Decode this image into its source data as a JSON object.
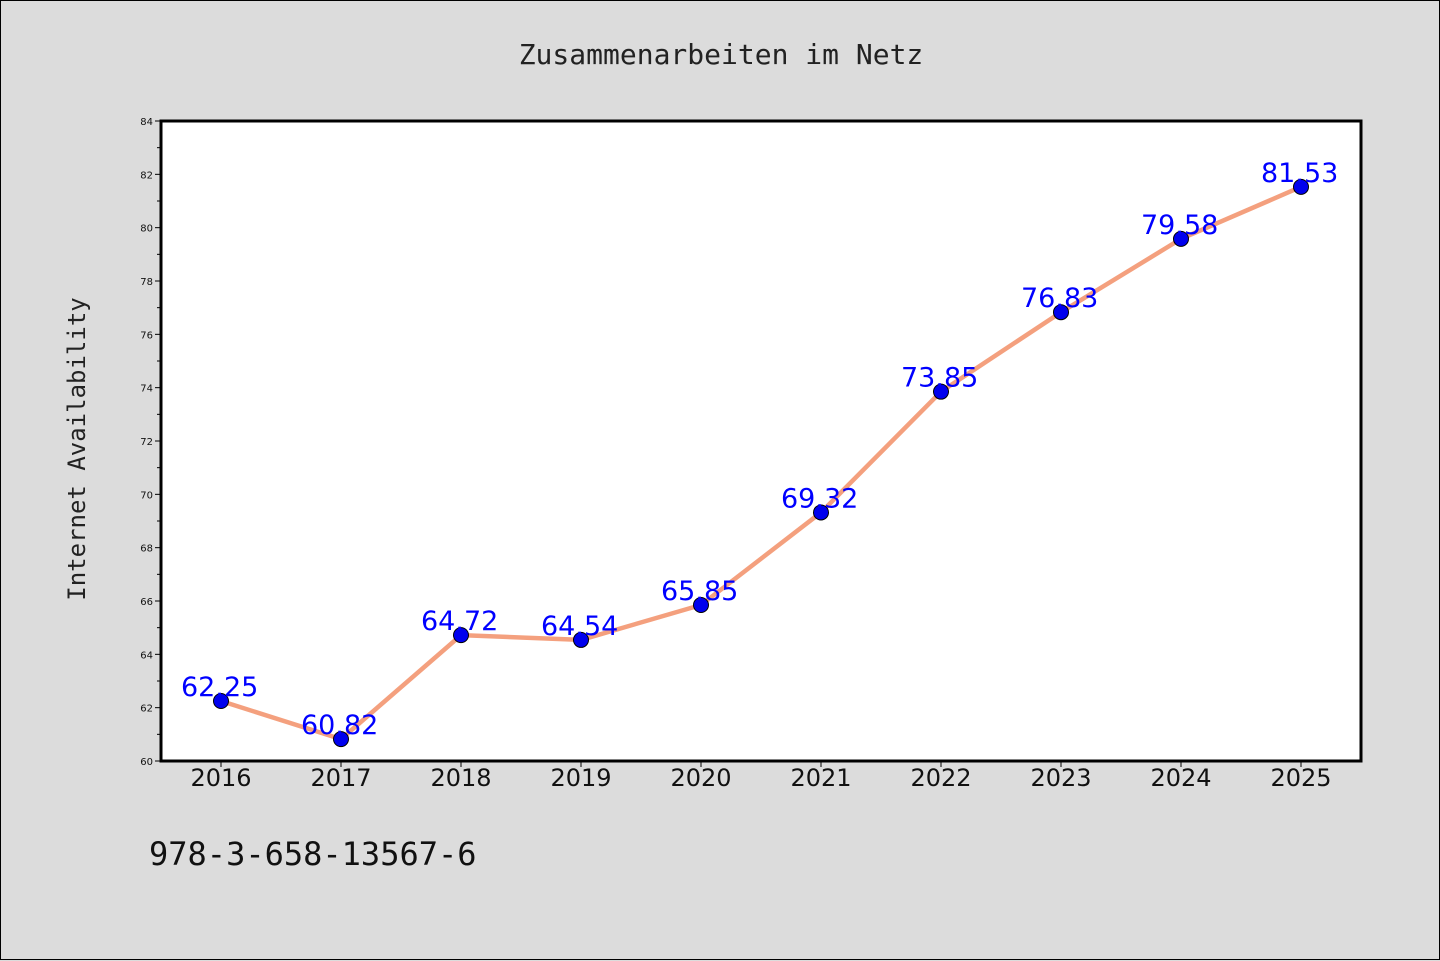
{
  "chart_data": {
    "type": "line",
    "title": "Zusammenarbeiten im Netz",
    "xlabel": "",
    "ylabel": "Internet Availability",
    "categories": [
      "2016",
      "2017",
      "2018",
      "2019",
      "2020",
      "2021",
      "2022",
      "2023",
      "2024",
      "2025"
    ],
    "series": [
      {
        "values": [
          62.25,
          60.82,
          64.72,
          64.54,
          65.85,
          69.32,
          73.85,
          76.83,
          79.58,
          81.53
        ],
        "line_color": "#f4a07e",
        "marker_color": "#0000ee"
      }
    ],
    "data_labels": [
      "62.25",
      "60.82",
      "64.72",
      "64.54",
      "65.85",
      "69.32",
      "73.85",
      "76.83",
      "79.58",
      "81.53"
    ],
    "ylim": [
      60,
      84
    ],
    "yticks": [
      "60",
      "62",
      "64",
      "66",
      "68",
      "70",
      "72",
      "74",
      "76",
      "78",
      "80",
      "82",
      "84"
    ],
    "grid": false,
    "legend": "none"
  },
  "footer_text": "978-3-658-13567-6",
  "colors": {
    "background": "#dcdcdc",
    "plot_background": "#ffffff",
    "data_label": "#0000ff"
  }
}
